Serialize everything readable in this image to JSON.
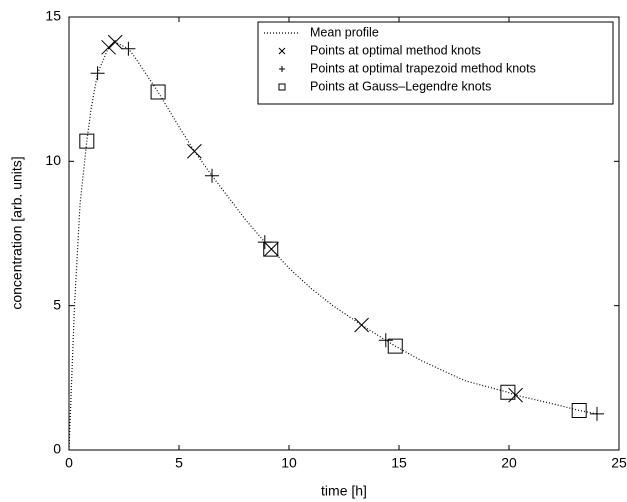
{
  "chart_data": {
    "type": "line",
    "xlabel": "time [h]",
    "ylabel": "concentration [arb. units]",
    "xlim": [
      0,
      25
    ],
    "xticks": [
      0,
      5,
      10,
      15,
      20,
      25
    ],
    "ylim": [
      0,
      15
    ],
    "yticks": [
      0,
      5,
      10,
      15
    ],
    "grid": false,
    "legend": "upper right",
    "series": [
      {
        "name": "Mean profile",
        "color": "#000000",
        "linestyle": "dotted",
        "marker": "none",
        "x": [
          0,
          0.25,
          0.5,
          0.81,
          1,
          1.3,
          1.8,
          2.1,
          2.7,
          3,
          4.05,
          5,
          5.7,
          6.5,
          7,
          8,
          8.9,
          9.2,
          10,
          11,
          12,
          13.3,
          14.4,
          14.83,
          16,
          18,
          19.95,
          20.3,
          22,
          23.19,
          24
        ],
        "values": [
          0,
          5,
          8.5,
          10.7,
          11.8,
          13.05,
          13.95,
          14.13,
          13.9,
          13.6,
          12.4,
          11.2,
          10.35,
          9.5,
          9.0,
          8.0,
          7.2,
          6.96,
          6.3,
          5.6,
          5.0,
          4.33,
          3.8,
          3.6,
          3.1,
          2.4,
          2.0,
          1.9,
          1.6,
          1.37,
          1.25
        ]
      },
      {
        "name": "Points at optimal method knots",
        "color": "#000000",
        "linestyle": "none",
        "marker": "x",
        "x": [
          1.8,
          2.1,
          5.7,
          9.2,
          13.3,
          20.3
        ],
        "values": [
          13.95,
          14.13,
          10.35,
          6.96,
          4.33,
          1.9
        ]
      },
      {
        "name": "Points at optimal trapezoid method knots",
        "color": "#000000",
        "linestyle": "none",
        "marker": "+",
        "x": [
          1.3,
          2.7,
          6.5,
          8.9,
          14.4,
          24
        ],
        "values": [
          13.05,
          13.9,
          9.5,
          7.2,
          3.8,
          1.25
        ]
      },
      {
        "name": "Points at Gauss–Legendre knots",
        "color": "#000000",
        "linestyle": "none",
        "marker": "square",
        "x": [
          0.81,
          4.05,
          9.17,
          14.83,
          19.95,
          23.19
        ],
        "values": [
          10.7,
          12.4,
          6.96,
          3.6,
          2.0,
          1.37
        ]
      }
    ]
  }
}
